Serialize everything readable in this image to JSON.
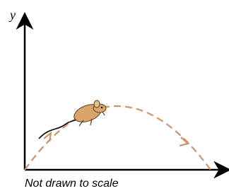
{
  "axes": {
    "y_label": "y"
  },
  "caption": "Not drawn to scale"
}
